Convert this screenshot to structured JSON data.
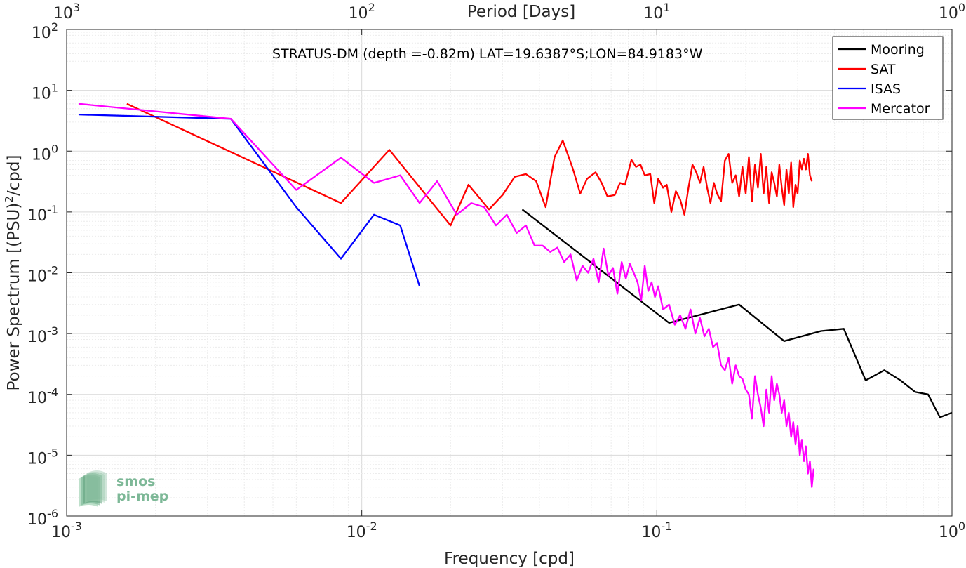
{
  "chart_data": {
    "type": "line",
    "title": "STRATUS-DM (depth =-0.82m) LAT=19.6387°S;LON=84.9183°W",
    "xlabel": "Frequency [cpd]",
    "ylabel": "Power Spectrum [(PSU)",
    "ylabel_sup": "2",
    "ylabel_tail": "/cpd]",
    "top_xlabel": "Period [Days]",
    "x_scale": "log",
    "y_scale": "log",
    "xlim": [
      0.001,
      1
    ],
    "ylim": [
      1e-06,
      100
    ],
    "grid": true,
    "legend_position": "top-right",
    "x_ticks": [
      {
        "value": 0.001,
        "base": "10",
        "exp": "-3"
      },
      {
        "value": 0.01,
        "base": "10",
        "exp": "-2"
      },
      {
        "value": 0.1,
        "base": "10",
        "exp": "-1"
      },
      {
        "value": 1,
        "base": "10",
        "exp": "0"
      }
    ],
    "y_ticks": [
      {
        "value": 1e-06,
        "base": "10",
        "exp": "-6"
      },
      {
        "value": 1e-05,
        "base": "10",
        "exp": "-5"
      },
      {
        "value": 0.0001,
        "base": "10",
        "exp": "-4"
      },
      {
        "value": 0.001,
        "base": "10",
        "exp": "-3"
      },
      {
        "value": 0.01,
        "base": "10",
        "exp": "-2"
      },
      {
        "value": 0.1,
        "base": "10",
        "exp": "-1"
      },
      {
        "value": 1,
        "base": "10",
        "exp": "0"
      },
      {
        "value": 10,
        "base": "10",
        "exp": "1"
      },
      {
        "value": 100,
        "base": "10",
        "exp": "2"
      }
    ],
    "top_ticks": [
      {
        "value": 0.001,
        "base": "10",
        "exp": "3"
      },
      {
        "value": 0.01,
        "base": "10",
        "exp": "2"
      },
      {
        "value": 0.1,
        "base": "10",
        "exp": "1"
      },
      {
        "value": 1,
        "base": "10",
        "exp": "0"
      }
    ],
    "series": [
      {
        "name": "Mooring",
        "color": "#000000",
        "x": [
          0.035,
          0.11,
          0.19,
          0.27,
          0.36,
          0.43,
          0.51,
          0.59,
          0.67,
          0.75,
          0.83,
          0.91,
          1.0
        ],
        "y": [
          0.11,
          0.0015,
          0.003,
          0.00075,
          0.0011,
          0.0012,
          0.00017,
          0.00025,
          0.00017,
          0.00011,
          0.0001,
          4.2e-05,
          5e-05
        ]
      },
      {
        "name": "SAT",
        "color": "#ff0000",
        "x": [
          0.0016,
          0.0085,
          0.0124,
          0.02,
          0.023,
          0.027,
          0.03,
          0.033,
          0.036,
          0.039,
          0.042,
          0.045,
          0.048,
          0.052,
          0.055,
          0.058,
          0.062,
          0.065,
          0.068,
          0.072,
          0.075,
          0.078,
          0.082,
          0.085,
          0.088,
          0.091,
          0.095,
          0.098,
          0.101,
          0.105,
          0.108,
          0.112,
          0.116,
          0.12,
          0.124,
          0.128,
          0.132,
          0.136,
          0.14,
          0.144,
          0.148,
          0.152,
          0.156,
          0.16,
          0.165,
          0.17,
          0.175,
          0.18,
          0.185,
          0.19,
          0.195,
          0.2,
          0.205,
          0.21,
          0.215,
          0.22,
          0.225,
          0.23,
          0.235,
          0.24,
          0.245,
          0.25,
          0.255,
          0.26,
          0.265,
          0.27,
          0.275,
          0.28,
          0.285,
          0.29,
          0.295,
          0.3,
          0.305,
          0.31,
          0.315,
          0.32,
          0.325,
          0.33,
          0.335
        ],
        "y": [
          6.0,
          0.14,
          1.05,
          0.06,
          0.28,
          0.11,
          0.19,
          0.38,
          0.42,
          0.32,
          0.12,
          0.8,
          1.5,
          0.5,
          0.2,
          0.35,
          0.45,
          0.3,
          0.18,
          0.19,
          0.3,
          0.28,
          0.72,
          0.55,
          0.6,
          0.4,
          0.42,
          0.14,
          0.35,
          0.25,
          0.28,
          0.1,
          0.22,
          0.16,
          0.09,
          0.25,
          0.6,
          0.45,
          0.3,
          0.55,
          0.25,
          0.14,
          0.3,
          0.2,
          0.15,
          0.7,
          0.9,
          0.3,
          0.4,
          0.18,
          0.55,
          0.2,
          0.8,
          0.15,
          0.6,
          0.25,
          0.9,
          0.2,
          0.55,
          0.14,
          0.45,
          0.3,
          0.18,
          0.6,
          0.25,
          0.13,
          0.5,
          0.2,
          0.65,
          0.12,
          0.28,
          0.2,
          0.7,
          0.5,
          0.75,
          0.5,
          0.9,
          0.4,
          0.32
        ]
      },
      {
        "name": "ISAS",
        "color": "#0000ff",
        "x": [
          0.0011,
          0.0036,
          0.006,
          0.0085,
          0.011,
          0.0135,
          0.0157
        ],
        "y": [
          4.0,
          3.4,
          0.12,
          0.017,
          0.09,
          0.06,
          0.006
        ]
      },
      {
        "name": "Mercator",
        "color": "#ff00ff",
        "x": [
          0.0011,
          0.0036,
          0.006,
          0.0085,
          0.011,
          0.0135,
          0.0157,
          0.018,
          0.021,
          0.0235,
          0.026,
          0.0285,
          0.031,
          0.0335,
          0.036,
          0.0385,
          0.041,
          0.0435,
          0.046,
          0.0485,
          0.051,
          0.0535,
          0.056,
          0.0585,
          0.061,
          0.0635,
          0.066,
          0.0685,
          0.071,
          0.0735,
          0.076,
          0.0785,
          0.081,
          0.0835,
          0.086,
          0.0885,
          0.091,
          0.0935,
          0.096,
          0.0985,
          0.101,
          0.105,
          0.11,
          0.115,
          0.12,
          0.125,
          0.13,
          0.135,
          0.14,
          0.145,
          0.15,
          0.155,
          0.16,
          0.165,
          0.17,
          0.175,
          0.18,
          0.185,
          0.19,
          0.195,
          0.2,
          0.205,
          0.21,
          0.215,
          0.22,
          0.225,
          0.23,
          0.235,
          0.24,
          0.245,
          0.25,
          0.255,
          0.26,
          0.265,
          0.27,
          0.275,
          0.28,
          0.285,
          0.29,
          0.295,
          0.3,
          0.305,
          0.31,
          0.315,
          0.32,
          0.325,
          0.33,
          0.335,
          0.34
        ],
        "y": [
          6.0,
          3.4,
          0.23,
          0.78,
          0.3,
          0.4,
          0.14,
          0.32,
          0.09,
          0.14,
          0.12,
          0.06,
          0.09,
          0.045,
          0.06,
          0.028,
          0.028,
          0.022,
          0.026,
          0.015,
          0.02,
          0.0075,
          0.013,
          0.01,
          0.017,
          0.007,
          0.025,
          0.009,
          0.012,
          0.0045,
          0.015,
          0.008,
          0.014,
          0.01,
          0.007,
          0.0035,
          0.013,
          0.005,
          0.007,
          0.004,
          0.006,
          0.0025,
          0.003,
          0.0014,
          0.002,
          0.0012,
          0.0025,
          0.001,
          0.0018,
          0.0009,
          0.0012,
          0.0006,
          0.0007,
          0.0003,
          0.00025,
          0.0004,
          0.00015,
          0.0003,
          0.0002,
          0.00018,
          0.00012,
          0.0001,
          4e-05,
          0.0002,
          0.0001,
          6e-05,
          3e-05,
          0.00012,
          5e-05,
          0.0002,
          8e-05,
          0.00015,
          0.0001,
          5e-05,
          8e-05,
          3e-05,
          5e-05,
          2e-05,
          3.5e-05,
          1.5e-05,
          3e-05,
          1e-05,
          1.8e-05,
          8e-06,
          1.4e-05,
          5e-06,
          8e-06,
          3e-06,
          6e-06
        ]
      }
    ]
  },
  "watermark": {
    "line1": "smos",
    "line2": "pi-mep",
    "colors": [
      "#a8d5b9",
      "#7db897",
      "#5c9e7a"
    ]
  }
}
